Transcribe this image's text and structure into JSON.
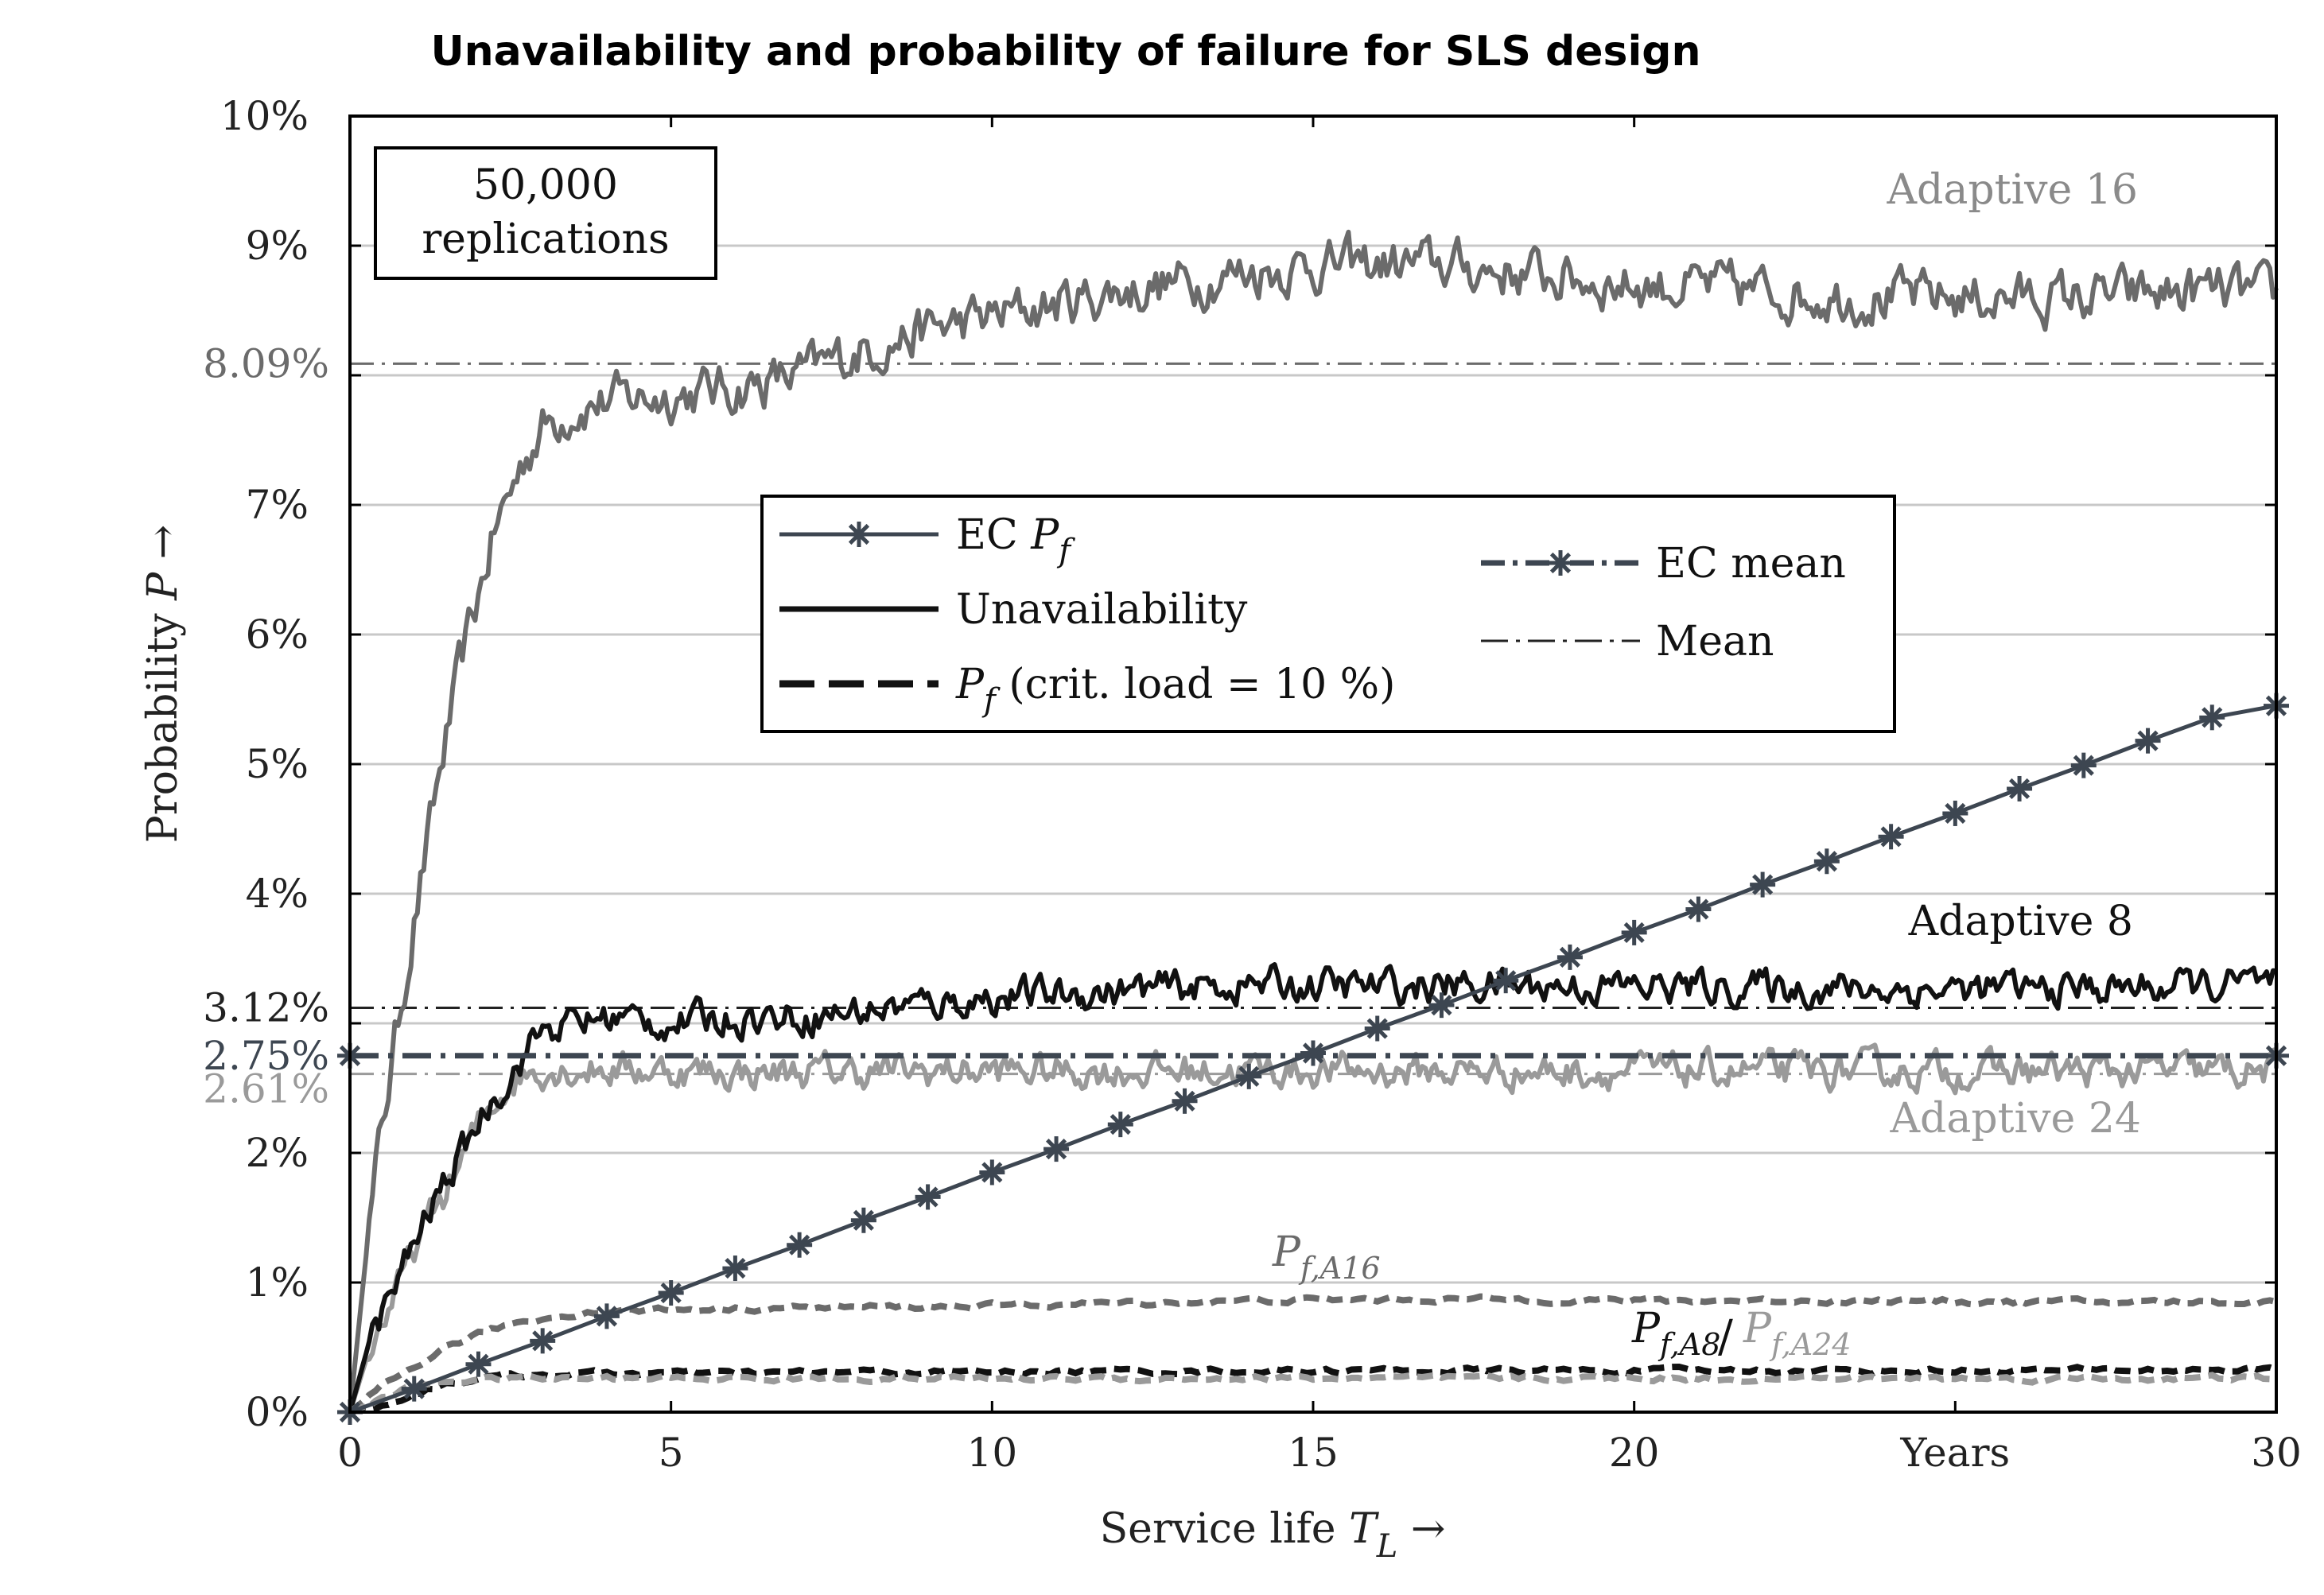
{
  "chart_data": {
    "type": "line",
    "title": "Unavailability and probability of failure for SLS design",
    "xlabel": "Service life",
    "xlabel_symbol": "T",
    "xlabel_subscript": "L",
    "ylabel": "Probability",
    "ylabel_symbol": "P",
    "arrow": "→",
    "xlim": [
      0,
      30
    ],
    "ylim": [
      0,
      10
    ],
    "x_ticks": [
      0,
      5,
      10,
      15,
      20,
      30
    ],
    "x_tick_labels": [
      "0",
      "5",
      "10",
      "15",
      "20",
      "30"
    ],
    "x_unit_label": "Years",
    "x_unit_position": 25,
    "y_ticks": [
      0,
      1,
      2,
      3,
      4,
      5,
      6,
      7,
      8,
      9,
      10
    ],
    "y_tick_labels": [
      "0%",
      "1%",
      "2%",
      "",
      "4%",
      "5%",
      "6%",
      "7%",
      "",
      "9%",
      "10%"
    ],
    "grid": true,
    "replications_box": [
      "50,000",
      "replications"
    ],
    "mean_lines": [
      {
        "label": "8.09%",
        "value": 8.09,
        "color": "#6b6b6b"
      },
      {
        "label": "3.12%",
        "value": 3.12,
        "color": "#222222"
      },
      {
        "label": "2.61%",
        "value": 2.61,
        "color": "#9a9a9a"
      }
    ],
    "ec_mean": {
      "label": "2.75%",
      "value": 2.75,
      "color": "#3d4651"
    },
    "series": [
      {
        "name": "Adaptive 16 unavailability",
        "label": "Adaptive 16",
        "label_color": "#8a8a8a",
        "color": "#6b6b6b",
        "style": "solid",
        "x": [
          0,
          0.25,
          0.5,
          0.75,
          1,
          1.25,
          1.5,
          1.75,
          2,
          2.25,
          2.5,
          2.75,
          3,
          3.5,
          4,
          5,
          6,
          7,
          8,
          9,
          10,
          11,
          12,
          13,
          14,
          15,
          16,
          17,
          18,
          19,
          20,
          21,
          22,
          23,
          24,
          25,
          26,
          27,
          28,
          29,
          30
        ],
        "y": [
          0,
          1.2,
          2.2,
          3.0,
          3.8,
          4.5,
          5.2,
          5.8,
          6.3,
          6.8,
          7.1,
          7.4,
          7.6,
          7.75,
          7.8,
          7.85,
          7.9,
          8.0,
          8.2,
          8.35,
          8.45,
          8.55,
          8.65,
          8.72,
          8.8,
          8.85,
          8.85,
          8.85,
          8.8,
          8.75,
          8.7,
          8.68,
          8.65,
          8.62,
          8.6,
          8.6,
          8.6,
          8.6,
          8.62,
          8.65,
          8.6
        ]
      },
      {
        "name": "Adaptive 8 unavailability",
        "label": "Adaptive 8",
        "label_color": "#111111",
        "color": "#111111",
        "style": "solid",
        "x": [
          0,
          0.25,
          0.5,
          0.75,
          1,
          1.25,
          1.5,
          1.75,
          2,
          2.25,
          2.5,
          2.75,
          3,
          4,
          5,
          6,
          7,
          8,
          9,
          10,
          12,
          14,
          16,
          18,
          20,
          22,
          24,
          26,
          28,
          30
        ],
        "y": [
          0,
          0.45,
          0.75,
          1.0,
          1.3,
          1.55,
          1.8,
          2.0,
          2.25,
          2.45,
          2.6,
          2.8,
          2.95,
          3.05,
          3.0,
          3.05,
          3.05,
          3.1,
          3.15,
          3.2,
          3.25,
          3.3,
          3.28,
          3.3,
          3.28,
          3.28,
          3.26,
          3.26,
          3.28,
          3.3
        ]
      },
      {
        "name": "Adaptive 24 unavailability",
        "label": "Adaptive 24",
        "label_color": "#9a9a9a",
        "color": "#9a9a9a",
        "style": "solid",
        "x": [
          0,
          0.25,
          0.5,
          0.75,
          1,
          1.25,
          1.5,
          1.75,
          2,
          2.25,
          2.5,
          2.75,
          3,
          4,
          6,
          8,
          10,
          12,
          14,
          16,
          18,
          20,
          22,
          24,
          26,
          28,
          30
        ],
        "y": [
          0,
          0.4,
          0.7,
          0.95,
          1.25,
          1.5,
          1.7,
          1.95,
          2.2,
          2.4,
          2.55,
          2.62,
          2.65,
          2.65,
          2.62,
          2.63,
          2.63,
          2.63,
          2.64,
          2.63,
          2.63,
          2.63,
          2.63,
          2.63,
          2.63,
          2.63,
          2.63
        ]
      },
      {
        "name": "EC Pf",
        "color": "#3d4651",
        "style": "solid-star",
        "x": [
          0,
          1,
          2,
          3,
          4,
          5,
          6,
          7,
          8,
          9,
          10,
          11,
          12,
          13,
          14,
          15,
          16,
          17,
          18,
          19,
          20,
          21,
          22,
          23,
          24,
          25,
          26,
          27,
          28,
          29,
          30
        ],
        "y": [
          0,
          0.18,
          0.37,
          0.55,
          0.74,
          0.92,
          1.11,
          1.29,
          1.48,
          1.66,
          1.85,
          2.03,
          2.22,
          2.4,
          2.59,
          2.77,
          2.96,
          3.14,
          3.33,
          3.51,
          3.7,
          3.88,
          4.07,
          4.25,
          4.44,
          4.62,
          4.81,
          4.99,
          5.18,
          5.36,
          5.45
        ]
      },
      {
        "name": "Pf A16",
        "label": "P",
        "label_sub": "f,A16",
        "label_color": "#6b6b6b",
        "color": "#6b6b6b",
        "style": "dashed",
        "x": [
          0,
          0.5,
          1,
          1.5,
          2,
          2.5,
          3,
          3.5,
          4,
          5,
          6,
          8,
          10,
          12,
          14,
          16,
          18,
          20,
          22,
          24,
          26,
          28,
          30
        ],
        "y": [
          0,
          0.2,
          0.35,
          0.5,
          0.6,
          0.68,
          0.72,
          0.76,
          0.78,
          0.79,
          0.8,
          0.81,
          0.82,
          0.84,
          0.86,
          0.87,
          0.87,
          0.86,
          0.86,
          0.86,
          0.85,
          0.85,
          0.85
        ]
      },
      {
        "name": "Pf A8",
        "label": "P",
        "label_sub": "f,A8",
        "label_color": "#111111",
        "color": "#111111",
        "style": "dashed",
        "x": [
          0,
          0.5,
          1,
          1.5,
          2,
          2.5,
          3,
          4,
          6,
          8,
          10,
          14,
          18,
          22,
          26,
          30
        ],
        "y": [
          0,
          0.05,
          0.14,
          0.22,
          0.26,
          0.28,
          0.29,
          0.3,
          0.3,
          0.31,
          0.31,
          0.32,
          0.32,
          0.32,
          0.32,
          0.33
        ]
      },
      {
        "name": "Pf A24",
        "label": "P",
        "label_sub": "f,A24",
        "label_color": "#9a9a9a",
        "color": "#9a9a9a",
        "style": "dashed",
        "x": [
          0,
          0.5,
          1,
          1.5,
          2,
          2.5,
          3,
          4,
          6,
          8,
          10,
          14,
          18,
          22,
          26,
          30
        ],
        "y": [
          0,
          0.1,
          0.2,
          0.24,
          0.25,
          0.26,
          0.26,
          0.26,
          0.26,
          0.26,
          0.26,
          0.26,
          0.26,
          0.26,
          0.26,
          0.26
        ]
      }
    ],
    "legend": {
      "placement": "center",
      "entries": [
        {
          "label": "EC",
          "symbol": "P",
          "sub": "f",
          "style": "solid-star",
          "color": "#3d4651"
        },
        {
          "label": "Unavailability",
          "style": "solid",
          "color": "#111111"
        },
        {
          "label": "(crit. load = 10 %)",
          "symbol": "P",
          "sub": "f",
          "style": "dashed",
          "color": "#111111"
        },
        {
          "label": "EC mean",
          "style": "dashdot-star",
          "color": "#3d4651"
        },
        {
          "label": "Mean",
          "style": "dashdot-thin",
          "color": "#222222"
        }
      ]
    }
  }
}
